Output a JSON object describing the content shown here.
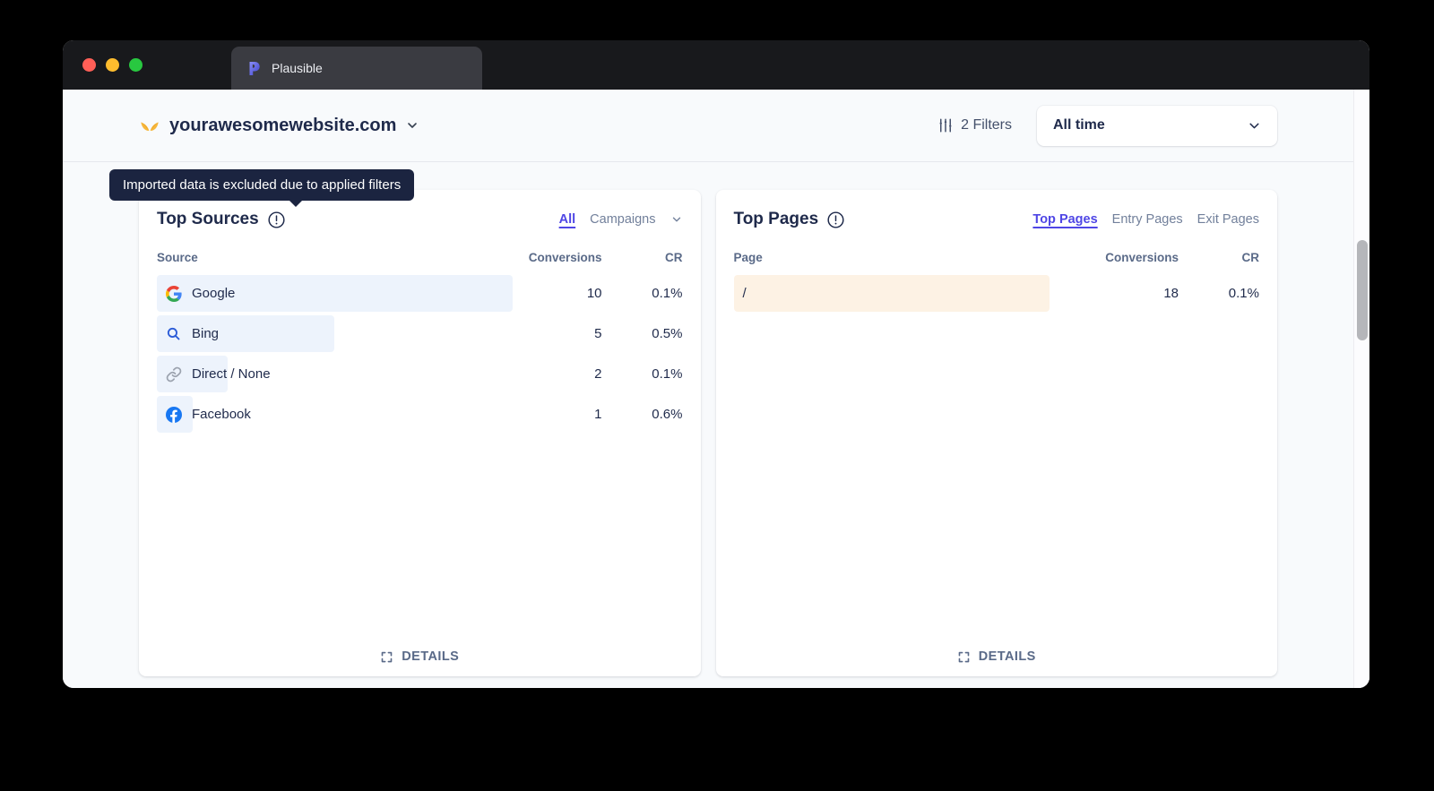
{
  "browser": {
    "tab_title": "Plausible"
  },
  "header": {
    "site_name": "yourawesomewebsite.com",
    "filters_label": "2 Filters",
    "date_range_label": "All time"
  },
  "tooltip": {
    "text": "Imported data is excluded due to applied filters"
  },
  "top_sources": {
    "title": "Top Sources",
    "filter_tabs": {
      "all": "All",
      "campaigns": "Campaigns"
    },
    "columns": {
      "name": "Source",
      "conversions": "Conversions",
      "cr": "CR"
    },
    "rows": [
      {
        "name": "Google",
        "conversions": "10",
        "cr": "0.1%",
        "bar_pct": 100
      },
      {
        "name": "Bing",
        "conversions": "5",
        "cr": "0.5%",
        "bar_pct": 50
      },
      {
        "name": "Direct / None",
        "conversions": "2",
        "cr": "0.1%",
        "bar_pct": 20
      },
      {
        "name": "Facebook",
        "conversions": "1",
        "cr": "0.6%",
        "bar_pct": 10
      }
    ],
    "details_label": "DETAILS"
  },
  "top_pages": {
    "title": "Top Pages",
    "tabs": [
      {
        "label": "Top Pages",
        "active": true
      },
      {
        "label": "Entry Pages",
        "active": false
      },
      {
        "label": "Exit Pages",
        "active": false
      }
    ],
    "columns": {
      "name": "Page",
      "conversions": "Conversions",
      "cr": "CR"
    },
    "rows": [
      {
        "name": "/",
        "conversions": "18",
        "cr": "0.1%",
        "bar_pct": 100
      }
    ],
    "details_label": "DETAILS"
  },
  "colors": {
    "accent": "#4f46e5",
    "source_bar": "#edf3fc",
    "page_bar": "#fdf2e4",
    "tooltip_bg": "#1b2440",
    "traffic_close": "#ff5f57",
    "traffic_minimize": "#febc2e",
    "traffic_zoom": "#28c840"
  }
}
